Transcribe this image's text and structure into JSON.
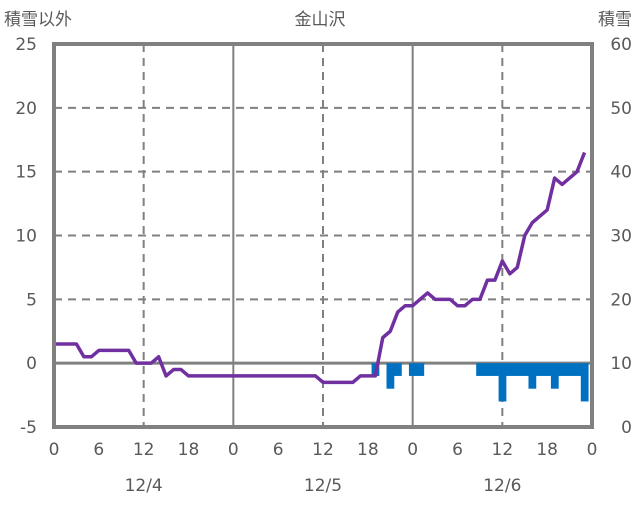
{
  "chart_data": {
    "type": "line",
    "title": "金山沢",
    "ylabel_left": "積雪以外",
    "ylabel_right": "積雪",
    "ylim_left": [
      -5,
      25
    ],
    "ylim_right": [
      0,
      60
    ],
    "yticks_left": [
      "25",
      "20",
      "15",
      "10",
      "5",
      "0",
      "-5"
    ],
    "yticks_right": [
      "60",
      "50",
      "40",
      "30",
      "20",
      "10",
      "0"
    ],
    "xticks": [
      "0",
      "6",
      "12",
      "18",
      "0",
      "6",
      "12",
      "18",
      "0",
      "6",
      "12",
      "18",
      "0"
    ],
    "date_labels": [
      "12/4",
      "12/5",
      "12/6"
    ],
    "x_unit": "hour from 12/4 0:00",
    "xlim": [
      0,
      72
    ],
    "grid": true,
    "series": [
      {
        "name": "積雪以外",
        "axis": "left",
        "color": "#7030a0",
        "x": [
          0,
          1,
          2,
          3,
          4,
          5,
          6,
          7,
          8,
          9,
          10,
          11,
          12,
          13,
          14,
          15,
          16,
          17,
          18,
          19,
          20,
          21,
          22,
          23,
          24,
          25,
          26,
          27,
          28,
          29,
          30,
          31,
          32,
          33,
          34,
          35,
          36,
          37,
          38,
          39,
          40,
          41,
          42,
          43,
          44,
          45,
          46,
          47,
          48,
          49,
          50,
          51,
          52,
          53,
          54,
          55,
          56,
          57,
          58,
          59,
          60,
          61,
          62,
          63,
          64,
          65,
          66,
          67,
          68,
          69,
          70,
          71
        ],
        "values": [
          1.5,
          1.5,
          1.5,
          1.5,
          0.5,
          0.5,
          1,
          1,
          1,
          1,
          1,
          0,
          0,
          0,
          0.5,
          -1,
          -0.5,
          -0.5,
          -1,
          -1,
          -1,
          -1,
          -1,
          -1,
          -1,
          -1,
          -1,
          -1,
          -1,
          -1,
          -1,
          -1,
          -1,
          -1,
          -1,
          -1,
          -1.5,
          -1.5,
          -1.5,
          -1.5,
          -1.5,
          -1,
          -1,
          -1,
          2,
          2.5,
          4,
          4.5,
          4.5,
          5,
          5.5,
          5,
          5,
          5,
          4.5,
          4.5,
          5,
          5,
          6.5,
          6.5,
          8,
          7,
          7.5,
          10,
          11,
          11.5,
          12,
          14.5,
          14,
          14.5,
          15,
          16.5
        ]
      },
      {
        "name": "積雪",
        "type": "bar",
        "axis": "right",
        "color": "#0070c0",
        "baseline": 10,
        "x": [
          43,
          45,
          46,
          48,
          49,
          57,
          58,
          59,
          60,
          61,
          62,
          63,
          64,
          65,
          66,
          67,
          68,
          69,
          70,
          71
        ],
        "values": [
          8,
          6,
          8,
          8,
          8,
          8,
          8,
          8,
          4,
          8,
          8,
          8,
          6,
          8,
          8,
          6,
          8,
          8,
          8,
          4
        ]
      }
    ]
  }
}
